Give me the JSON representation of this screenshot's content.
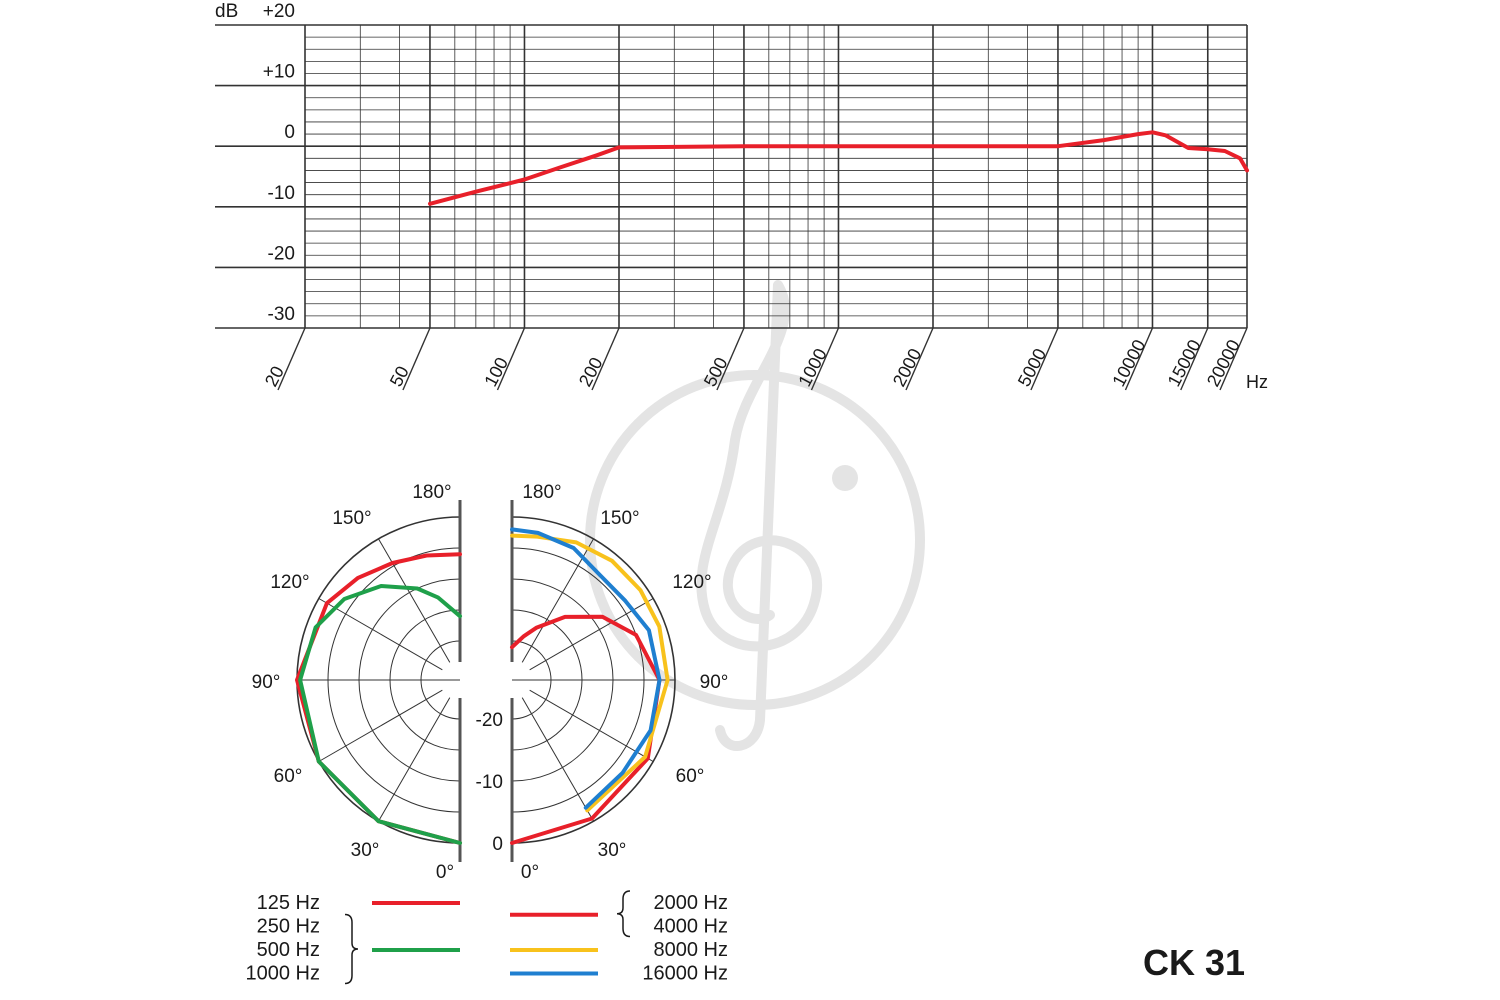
{
  "colors": {
    "grid": "#333333",
    "watermark": "#e4e4e4",
    "red": "#e8202a",
    "green": "#1fa04a",
    "yellow": "#f8c21c",
    "blue": "#1f7fd0"
  },
  "watermark_icon": "treble-clef-watermark-icon",
  "model": "CK 31",
  "chart_data": [
    {
      "type": "line",
      "title": "",
      "xlabel": "Hz",
      "ylabel": "dB",
      "x_scale": "log",
      "xlim": [
        20,
        20000
      ],
      "ylim": [
        -30,
        20
      ],
      "x_ticks": [
        {
          "value": 20,
          "label": "20"
        },
        {
          "value": 50,
          "label": "50"
        },
        {
          "value": 100,
          "label": "100"
        },
        {
          "value": 200,
          "label": "200"
        },
        {
          "value": 500,
          "label": "500"
        },
        {
          "value": 1000,
          "label": "1000"
        },
        {
          "value": 2000,
          "label": "2000"
        },
        {
          "value": 5000,
          "label": "5000"
        },
        {
          "value": 10000,
          "label": "10000"
        },
        {
          "value": 15000,
          "label": "15000"
        },
        {
          "value": 20000,
          "label": "20000"
        }
      ],
      "y_ticks": [
        {
          "value": 20,
          "label": "+20"
        },
        {
          "value": 10,
          "label": "+10"
        },
        {
          "value": 0,
          "label": "0"
        },
        {
          "value": -10,
          "label": "-10"
        },
        {
          "value": -20,
          "label": "-20"
        },
        {
          "value": -30,
          "label": "-30"
        }
      ],
      "grid": true,
      "series": [
        {
          "color": "#e8202a",
          "points": [
            [
              50,
              -9.5
            ],
            [
              70,
              -7.5
            ],
            [
              100,
              -5.5
            ],
            [
              130,
              -3.5
            ],
            [
              170,
              -1.5
            ],
            [
              200,
              -0.2
            ],
            [
              500,
              0
            ],
            [
              1000,
              0
            ],
            [
              2000,
              0
            ],
            [
              5000,
              0
            ],
            [
              7000,
              1
            ],
            [
              9000,
              2
            ],
            [
              10000,
              2.3
            ],
            [
              11000,
              1.8
            ],
            [
              13000,
              -0.3
            ],
            [
              15000,
              -0.5
            ],
            [
              17000,
              -0.8
            ],
            [
              19000,
              -2
            ],
            [
              20000,
              -4
            ]
          ]
        }
      ]
    },
    {
      "type": "polar",
      "title": "",
      "angle_labels": [
        {
          "angle": 0,
          "label": "0°"
        },
        {
          "angle": 30,
          "label": "30°"
        },
        {
          "angle": 60,
          "label": "60°"
        },
        {
          "angle": 90,
          "label": "90°"
        },
        {
          "angle": 120,
          "label": "120°"
        },
        {
          "angle": 150,
          "label": "150°"
        },
        {
          "angle": 180,
          "label": "180°"
        }
      ],
      "radial_ticks": [
        {
          "value": 0,
          "label": "0"
        },
        {
          "value": -10,
          "label": "-10"
        },
        {
          "value": -20,
          "label": "-20"
        }
      ],
      "r_range_db": [
        -25,
        0
      ],
      "left_half": [
        {
          "legend": [
            "125 Hz"
          ],
          "color": "#e8202a",
          "points_deg_db": [
            [
              0,
              0
            ],
            [
              30,
              0
            ],
            [
              60,
              0
            ],
            [
              90,
              0
            ],
            [
              120,
              -1.5
            ],
            [
              135,
              -3
            ],
            [
              150,
              -4.5
            ],
            [
              165,
              -5.5
            ],
            [
              180,
              -6
            ]
          ]
        },
        {
          "legend": [
            "250 Hz",
            "500 Hz",
            "1000 Hz"
          ],
          "color": "#1fa04a",
          "points_deg_db": [
            [
              0,
              0
            ],
            [
              30,
              0
            ],
            [
              60,
              0
            ],
            [
              90,
              -0.5
            ],
            [
              110,
              -1.5
            ],
            [
              125,
              -3.5
            ],
            [
              140,
              -6.5
            ],
            [
              155,
              -10
            ],
            [
              165,
              -12.5
            ],
            [
              180,
              -16
            ]
          ]
        }
      ],
      "right_half": [
        {
          "legend": [
            "2000 Hz",
            "4000 Hz"
          ],
          "color": "#e8202a",
          "points_deg_db": [
            [
              0,
              0
            ],
            [
              30,
              -0.5
            ],
            [
              60,
              -1
            ],
            [
              90,
              -2.5
            ],
            [
              110,
              -5
            ],
            [
              125,
              -8.5
            ],
            [
              140,
              -13
            ],
            [
              155,
              -17
            ],
            [
              165,
              -19
            ],
            [
              180,
              -21
            ]
          ]
        },
        {
          "legend": [
            "8000 Hz"
          ],
          "color": "#f8c21c",
          "points_deg_db": [
            [
              30,
              -2
            ],
            [
              60,
              -1.5
            ],
            [
              90,
              -1.2
            ],
            [
              110,
              -1
            ],
            [
              125,
              -1
            ],
            [
              140,
              -1.2
            ],
            [
              155,
              -1.8
            ],
            [
              170,
              -2.8
            ],
            [
              180,
              -3
            ]
          ]
        },
        {
          "legend": [
            "16000 Hz"
          ],
          "color": "#1f7fd0",
          "points_deg_db": [
            [
              30,
              -2.5
            ],
            [
              50,
              -3
            ],
            [
              70,
              -2.5
            ],
            [
              90,
              -2.5
            ],
            [
              110,
              -2.8
            ],
            [
              125,
              -4
            ],
            [
              140,
              -4.2
            ],
            [
              155,
              -2.8
            ],
            [
              170,
              -2.2
            ],
            [
              180,
              -2
            ]
          ]
        }
      ]
    }
  ]
}
